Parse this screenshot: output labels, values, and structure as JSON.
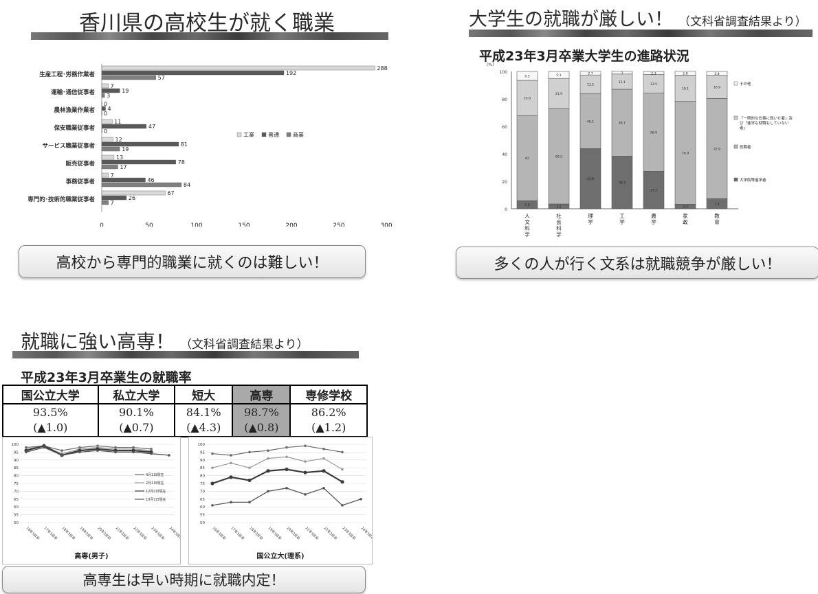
{
  "panel1": {
    "title": "香川県の高校生が就く職業",
    "callout": "高校から専門的職業に就くのは難しい！"
  },
  "panel2": {
    "title": "大学生の就職が厳しい！",
    "title_note": "（文科省調査結果より）",
    "subtitle": "平成23年3月卒業大学生の進路状況",
    "callout": "多くの人が行く文系は就職競争が厳しい！"
  },
  "panel3": {
    "title": "就職に強い高専！",
    "title_note": "（文科省調査結果より）",
    "subtitle": "平成23年3月卒業生の就職率",
    "table": {
      "headers": [
        "国公立大学",
        "私立大学",
        "短大",
        "高専",
        "専修学校"
      ],
      "rates": [
        "93.5%",
        "90.1%",
        "84.1%",
        "98.7%",
        "86.2%"
      ],
      "changes": [
        "(▲1.0)",
        "(▲0.7)",
        "(▲4.3)",
        "(▲0.8)",
        "(▲1.2)"
      ],
      "highlight_index": 3
    },
    "callout": "高専生は早い時期に就職内定！"
  },
  "chart_data": [
    {
      "type": "bar",
      "orientation": "horizontal",
      "categories": [
        "生産工程･労務作業者",
        "運輸･通信従事者",
        "農林漁業作業者",
        "保安職業従事者",
        "サービス職業従事者",
        "販売従事者",
        "事務従事者",
        "専門的･技術的職業従事者"
      ],
      "series": [
        {
          "name": "工業",
          "values": [
            288,
            7,
            0,
            11,
            12,
            13,
            7,
            67
          ],
          "color": "#d9d9d9"
        },
        {
          "name": "普通",
          "values": [
            192,
            19,
            4,
            47,
            81,
            78,
            46,
            26
          ],
          "color": "#595959"
        },
        {
          "name": "商業",
          "values": [
            57,
            3,
            0,
            0,
            19,
            17,
            84,
            7
          ],
          "color": "#7f7f7f"
        }
      ],
      "xlim": [
        0,
        300
      ],
      "xticks": [
        0,
        50,
        100,
        150,
        200,
        250,
        300
      ],
      "legend": "right"
    },
    {
      "type": "bar",
      "stacked": true,
      "categories": [
        "人文科学",
        "社会科学",
        "理学",
        "工学",
        "農学",
        "家政",
        "教育"
      ],
      "ylim": [
        0,
        100
      ],
      "yunit": "(%)",
      "yticks": [
        0,
        20,
        40,
        60,
        80,
        100
      ],
      "series": [
        {
          "name": "大学院等進学者",
          "values": [
            5.9,
            3.5,
            43.8,
            38.3,
            27.3,
            3.3,
            7.4
          ],
          "color": "#6e6e6e"
        },
        {
          "name": "就職者",
          "values": [
            62.0,
            69.5,
            40.1,
            48.7,
            56.9,
            74.9,
            72.9
          ],
          "color": "#b5b5b5"
        },
        {
          "name": "「一時的な仕事に就いた者」及び「進学も就職もしていない者」",
          "values": [
            25.6,
            21.9,
            13.5,
            11.1,
            13.5,
            19.1,
            16.9
          ],
          "color": "#d0d0d0"
        },
        {
          "name": "その他",
          "values": [
            6.5,
            5.1,
            2.7,
            2.0,
            2.3,
            2.8,
            2.8
          ],
          "color": "#f7f7f7"
        }
      ],
      "legend": "right"
    },
    {
      "type": "line",
      "xlabel": "高専(男子)",
      "x": [
        "16年3月卒",
        "17年3月卒",
        "18年3月卒",
        "19年3月卒",
        "20年3月卒",
        "21年3月卒",
        "22年3月卒",
        "23年3月卒",
        "24年3月卒"
      ],
      "ylim": [
        50,
        100
      ],
      "yticks": [
        50,
        55,
        60,
        65,
        70,
        75,
        80,
        85,
        90,
        95,
        100
      ],
      "series": [
        {
          "name": "4月1日現在",
          "values": [
            98,
            99,
            96,
            98,
            99,
            98,
            98,
            97,
            null
          ]
        },
        {
          "name": "2月1日現在",
          "values": [
            97,
            99,
            94,
            97,
            98,
            97,
            97,
            96,
            null
          ]
        },
        {
          "name": "12月1日現在",
          "values": [
            96,
            99,
            93,
            96,
            97,
            96,
            96,
            95,
            null
          ]
        },
        {
          "name": "10月1日現在",
          "values": [
            95,
            98,
            93,
            95,
            96,
            95,
            95,
            94,
            93
          ]
        }
      ],
      "legend": "right"
    },
    {
      "type": "line",
      "xlabel": "国公立大(理系)",
      "x": [
        "16年3月卒",
        "17年3月卒",
        "18年3月卒",
        "19年3月卒",
        "20年3月卒",
        "21年3月卒",
        "22年3月卒",
        "23年3月卒",
        "24年3月卒"
      ],
      "ylim": [
        50,
        100
      ],
      "yticks": [
        50,
        55,
        60,
        65,
        70,
        75,
        80,
        85,
        90,
        95,
        100
      ],
      "series": [
        {
          "name": "4月1日現在",
          "values": [
            94,
            93,
            95,
            96,
            98,
            99,
            97,
            95,
            null
          ]
        },
        {
          "name": "2月1日現在",
          "values": [
            85,
            88,
            85,
            91,
            92,
            89,
            91,
            84,
            null
          ]
        },
        {
          "name": "12月1日現在",
          "values": [
            75,
            79,
            77,
            83,
            84,
            82,
            83,
            76,
            null
          ]
        },
        {
          "name": "10月1日現在",
          "values": [
            61,
            63,
            63,
            70,
            72,
            68,
            72,
            61,
            65
          ]
        }
      ]
    }
  ]
}
